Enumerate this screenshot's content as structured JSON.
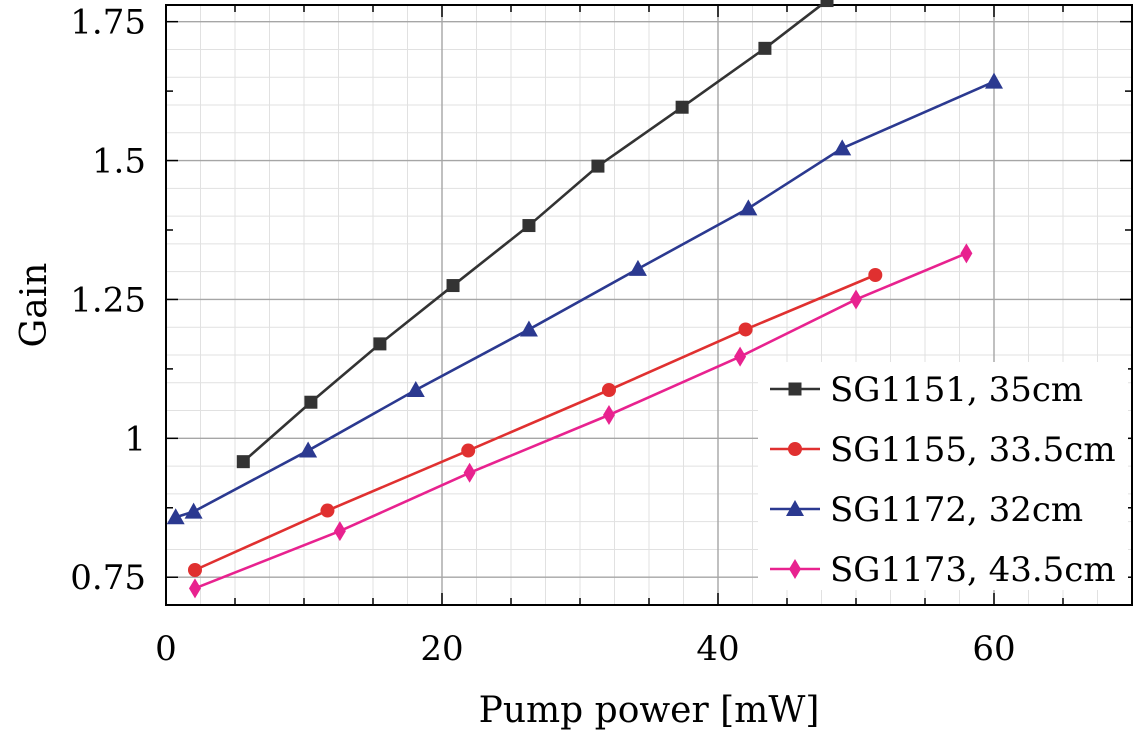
{
  "chart_data": {
    "type": "line",
    "title": "",
    "xlabel": "Pump power [mW]",
    "ylabel": "Gain",
    "xlim": [
      0,
      70
    ],
    "ylim": [
      0.7,
      1.78
    ],
    "x_ticks": [
      0,
      20,
      40,
      60
    ],
    "x_tick_labels": [
      "0",
      "20",
      "40",
      "60"
    ],
    "y_ticks": [
      0.75,
      1,
      1.25,
      1.5,
      1.75
    ],
    "y_tick_labels": [
      "0.75",
      "1",
      "1.25",
      "1.5",
      "1.75"
    ],
    "grid": true,
    "legend_position": "bottom-right",
    "series": [
      {
        "name": "SG1151, 35cm",
        "color": "#333333",
        "marker": "square",
        "x": [
          5.6,
          10.5,
          15.5,
          20.8,
          26.3,
          31.3,
          37.4,
          43.4,
          47.9
        ],
        "y": [
          0.958,
          1.065,
          1.17,
          1.275,
          1.383,
          1.49,
          1.596,
          1.702,
          1.788
        ]
      },
      {
        "name": "SG1155, 33.5cm",
        "color": "#e03030",
        "marker": "circle",
        "x": [
          2.1,
          11.7,
          21.9,
          32.1,
          42.0,
          51.4
        ],
        "y": [
          0.763,
          0.87,
          0.978,
          1.087,
          1.196,
          1.294
        ]
      },
      {
        "name": "SG1172, 32cm",
        "color": "#2b3990",
        "marker": "triangle",
        "x": [
          0.7,
          2.0,
          10.3,
          18.1,
          26.3,
          34.2,
          42.2,
          49.0,
          60.0
        ],
        "y": [
          0.858,
          0.868,
          0.978,
          1.087,
          1.196,
          1.305,
          1.414,
          1.522,
          1.642
        ]
      },
      {
        "name": "SG1173, 43.5cm",
        "color": "#e8228f",
        "marker": "diamond",
        "x": [
          2.1,
          12.6,
          22.0,
          32.1,
          41.6,
          50.0,
          58.0
        ],
        "y": [
          0.73,
          0.833,
          0.938,
          1.042,
          1.147,
          1.25,
          1.333
        ]
      }
    ]
  }
}
